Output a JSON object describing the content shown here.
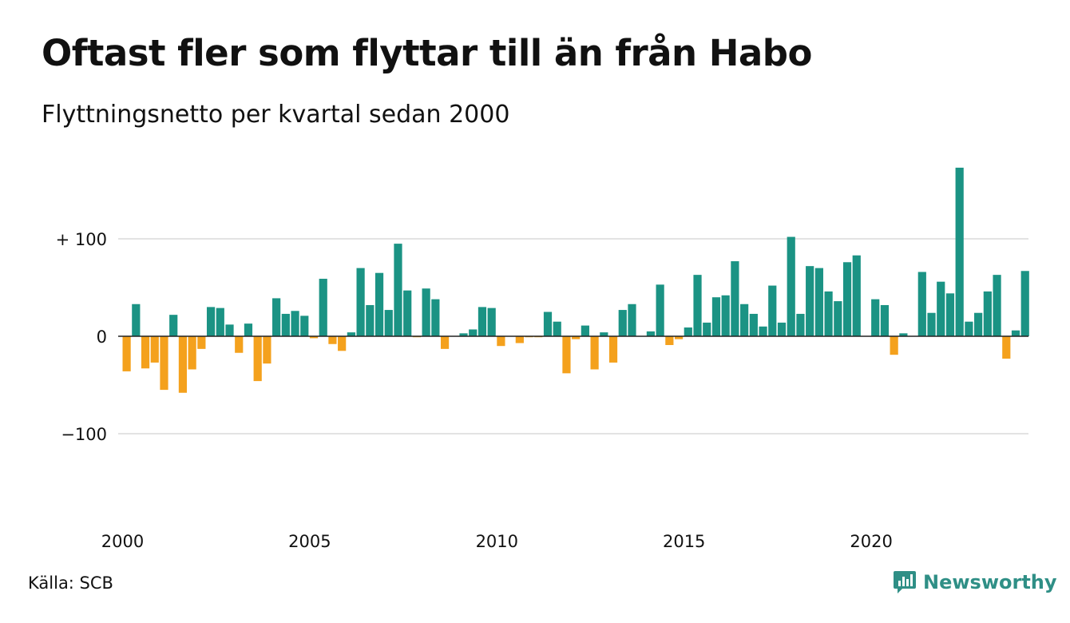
{
  "title": "Oftast fler som flyttar till än från Habo",
  "subtitle": "Flyttningsnetto per kvartal sedan 2000",
  "source": "Källa: SCB",
  "brand": {
    "name": "Newsworthy",
    "icon": "newsworthy-logo-icon"
  },
  "colors": {
    "positive": "#1b9384",
    "negative": "#f4a11d",
    "grid": "#e3e3e3",
    "text": "#111111"
  },
  "chart_data": {
    "type": "bar",
    "title": "Oftast fler som flyttar till än från Habo",
    "subtitle": "Flyttningsnetto per kvartal sedan 2000",
    "xlabel": "",
    "ylabel": "",
    "ylim": [
      -185,
      185
    ],
    "xlim": [
      2000,
      2024.75
    ],
    "grid": true,
    "y_ticks": [
      {
        "value": 100,
        "label": "+ 100"
      },
      {
        "value": 0,
        "label": "0"
      },
      {
        "value": -100,
        "label": "−100"
      }
    ],
    "x_ticks": [
      {
        "value": 2000,
        "label": "2000"
      },
      {
        "value": 2005,
        "label": "2005"
      },
      {
        "value": 2010,
        "label": "2010"
      },
      {
        "value": 2015,
        "label": "2015"
      },
      {
        "value": 2020,
        "label": "2020"
      }
    ],
    "start_year": 2000,
    "periods_per_year": 4,
    "values": [
      -36,
      33,
      -33,
      -27,
      -55,
      22,
      -58,
      -34,
      -13,
      30,
      29,
      12,
      -17,
      13,
      -46,
      -28,
      39,
      23,
      26,
      21,
      -2,
      59,
      -8,
      -15,
      4,
      70,
      32,
      65,
      27,
      95,
      47,
      -1,
      49,
      38,
      -13,
      0,
      3,
      7,
      30,
      29,
      -10,
      0,
      -7,
      -1,
      -1,
      25,
      15,
      -38,
      -3,
      11,
      -34,
      4,
      -27,
      27,
      33,
      0,
      5,
      53,
      -9,
      -3,
      9,
      63,
      14,
      40,
      42,
      77,
      33,
      23,
      10,
      52,
      14,
      102,
      23,
      72,
      70,
      46,
      36,
      76,
      83,
      0,
      38,
      32,
      -19,
      3,
      0,
      66,
      24,
      56,
      44,
      173,
      15,
      24,
      46,
      63,
      -23,
      6,
      67
    ]
  }
}
